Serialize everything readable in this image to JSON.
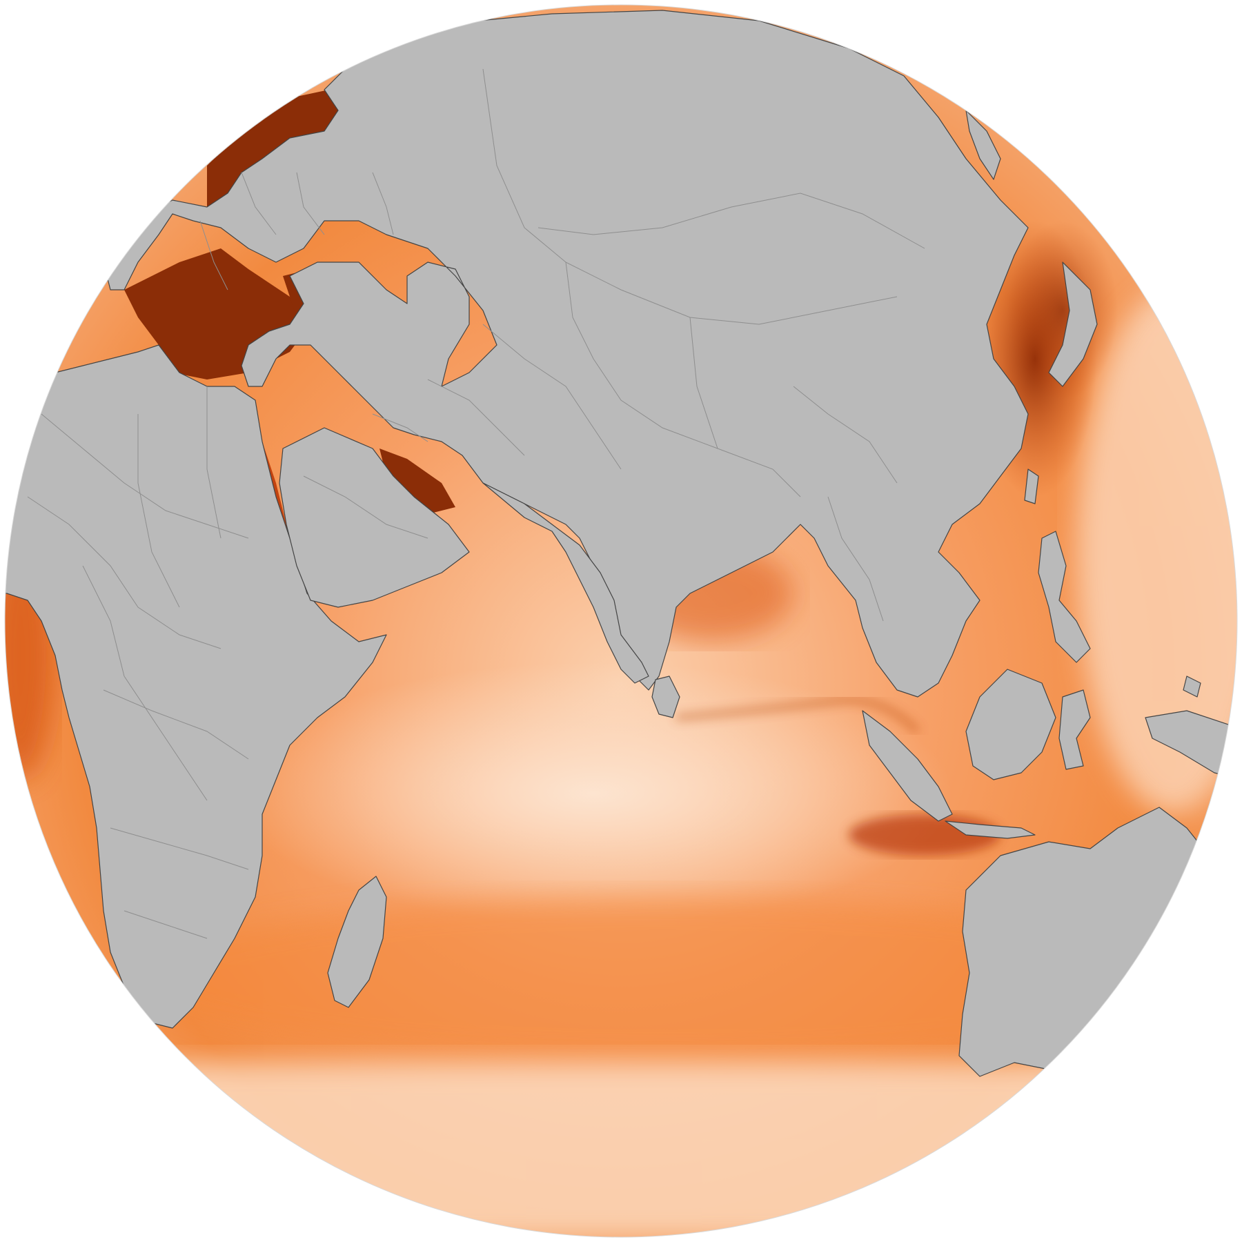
{
  "map": {
    "projection": "orthographic",
    "colors": {
      "ocean_low": "#fde3cc",
      "ocean_mid": "#f5822f",
      "ocean_high": "#8b2a06",
      "land": "#bababa",
      "coast": "#444444",
      "border": "#8e8e8e"
    }
  }
}
